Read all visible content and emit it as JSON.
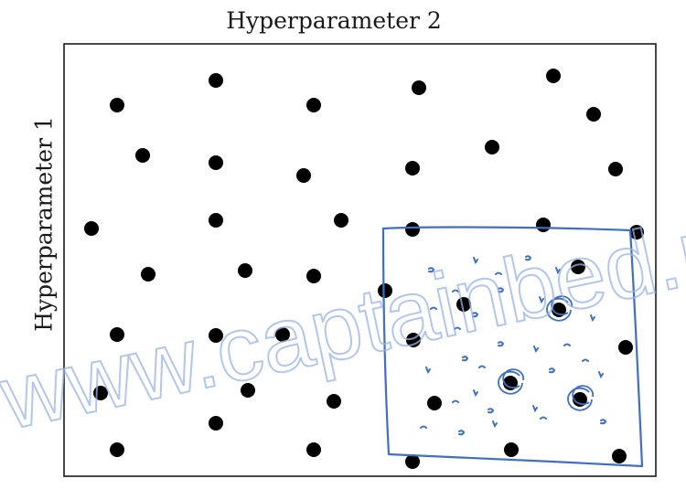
{
  "x_axis_title": "Hyperparameter 2",
  "y_axis_title": "Hyperparameter 1",
  "watermark": "www.captainbed.n",
  "colors": {
    "dot": "#000000",
    "frame": "#1a1a1a",
    "sketch": "#3f6fc4",
    "watermark": "#9ab3e6"
  },
  "chart_data": {
    "type": "scatter",
    "grid": false,
    "legend": "none",
    "note": "Random search sample points; hand-drawn box marks a zoomed-in region with finer samples"
  }
}
